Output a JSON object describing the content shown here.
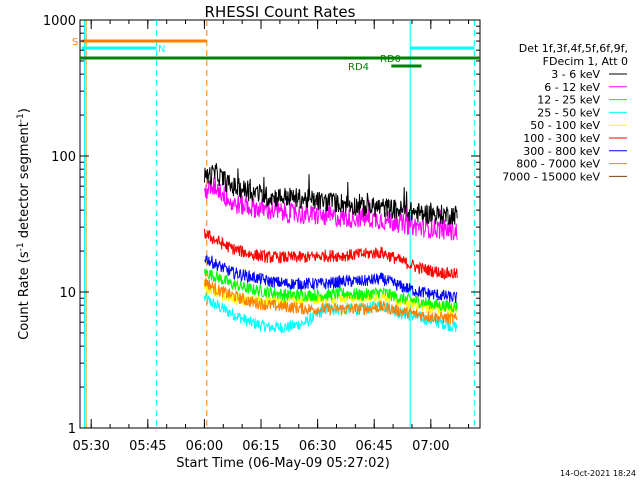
{
  "chart_data": {
    "type": "line",
    "title": "RHESSI Count Rates",
    "xlabel": "Start Time (06-May-09 05:27:02)",
    "ylabel_main": "Count Rate (s",
    "ylabel_sup1": "-1",
    "ylabel_mid": " detector segment",
    "ylabel_sup2": "-1",
    "ylabel_end": ")",
    "yscale": "log",
    "ylim": [
      1,
      1000
    ],
    "xlim_minutes": [
      0,
      106
    ],
    "x_tick_labels": [
      "05:30",
      "05:45",
      "06:00",
      "06:15",
      "06:30",
      "06:45",
      "07:00"
    ],
    "x_tick_minutes": [
      2.97,
      17.97,
      32.97,
      47.97,
      62.97,
      77.97,
      92.97
    ],
    "y_tick_labels": [
      "1",
      "10",
      "100",
      "1000"
    ],
    "y_tick_values": [
      1,
      10,
      100,
      1000
    ],
    "legend_header": [
      "Det 1f,3f,4f,5f,6f,9f,",
      "FDecim 1, Att 0"
    ],
    "series": [
      {
        "name": "3 - 6 keV",
        "color": "#000000",
        "x": [
          33,
          36,
          40,
          45,
          50,
          55,
          60,
          65,
          70,
          75,
          80,
          85,
          90,
          95,
          100
        ],
        "y": [
          70,
          75,
          60,
          55,
          50,
          50,
          48,
          46,
          45,
          42,
          42,
          40,
          38,
          37,
          37
        ]
      },
      {
        "name": "6 - 12 keV",
        "color": "#ff00ff",
        "x": [
          33,
          36,
          40,
          45,
          50,
          55,
          60,
          65,
          70,
          75,
          80,
          85,
          90,
          95,
          100
        ],
        "y": [
          55,
          60,
          45,
          42,
          40,
          38,
          37,
          36,
          35,
          35,
          34,
          32,
          30,
          29,
          28
        ]
      },
      {
        "name": "12 - 25 keV",
        "color": "#00ff00",
        "x": [
          33,
          36,
          40,
          45,
          50,
          55,
          60,
          65,
          70,
          75,
          80,
          85,
          90,
          95,
          100
        ],
        "y": [
          14,
          13,
          11.5,
          10.5,
          10,
          9.5,
          9.5,
          9.5,
          9.8,
          9.5,
          10,
          9,
          8.5,
          8,
          7.8
        ]
      },
      {
        "name": "25 - 50 keV",
        "color": "#00ffff",
        "x": [
          33,
          36,
          40,
          45,
          50,
          55,
          60,
          65,
          70,
          75,
          80,
          85,
          90,
          95,
          100
        ],
        "y": [
          9,
          8,
          7,
          6,
          5.5,
          5.5,
          6,
          7.5,
          7.5,
          7.5,
          8,
          7,
          6.5,
          6,
          5.5
        ]
      },
      {
        "name": "50 - 100 keV",
        "color": "#ffff00",
        "x": [
          33,
          36,
          40,
          45,
          50,
          55,
          60,
          65,
          70,
          75,
          80,
          85,
          90,
          95,
          100
        ],
        "y": [
          11,
          10,
          9,
          8.5,
          8.5,
          8.5,
          9,
          9,
          9.2,
          9,
          9.5,
          8.5,
          8,
          7.5,
          7.3
        ]
      },
      {
        "name": "100 - 300 keV",
        "color": "#ff0000",
        "x": [
          33,
          36,
          40,
          45,
          50,
          55,
          60,
          65,
          70,
          75,
          80,
          85,
          90,
          95,
          100
        ],
        "y": [
          27,
          24,
          21,
          19,
          18,
          18,
          18,
          18.5,
          18.5,
          19,
          19.5,
          17,
          15,
          14,
          13.5
        ]
      },
      {
        "name": "300 - 800 keV",
        "color": "#0000ff",
        "x": [
          33,
          36,
          40,
          45,
          50,
          55,
          60,
          65,
          70,
          75,
          80,
          85,
          90,
          95,
          100
        ],
        "y": [
          18,
          16,
          14,
          13,
          12,
          11.5,
          11.5,
          11.5,
          12,
          12,
          12.5,
          11,
          10,
          9.5,
          9
        ]
      },
      {
        "name": "800 - 7000 keV",
        "color": "#ff8000",
        "x": [
          33,
          36,
          40,
          45,
          50,
          55,
          60,
          65,
          70,
          75,
          80,
          85,
          90,
          95,
          100
        ],
        "y": [
          12,
          10.5,
          9.5,
          8.5,
          8,
          7.8,
          7.5,
          7.5,
          7.5,
          7.5,
          7.8,
          7.2,
          6.8,
          6.5,
          6.3
        ]
      },
      {
        "name": "7000 - 15000 keV",
        "color": "#804000",
        "x": [],
        "y": []
      }
    ],
    "annotations": [
      {
        "text": "S",
        "color": "#ff8000"
      },
      {
        "text": "N",
        "color": "#00ffff"
      },
      {
        "text": "RD0",
        "color": "#008000"
      },
      {
        "text": "RD4",
        "color": "#008000"
      }
    ],
    "footer_date": "14-Oct-2021 18:24"
  },
  "colors": {
    "saa": "#ff8000",
    "night": "#00ffff",
    "decim": "#008000"
  }
}
